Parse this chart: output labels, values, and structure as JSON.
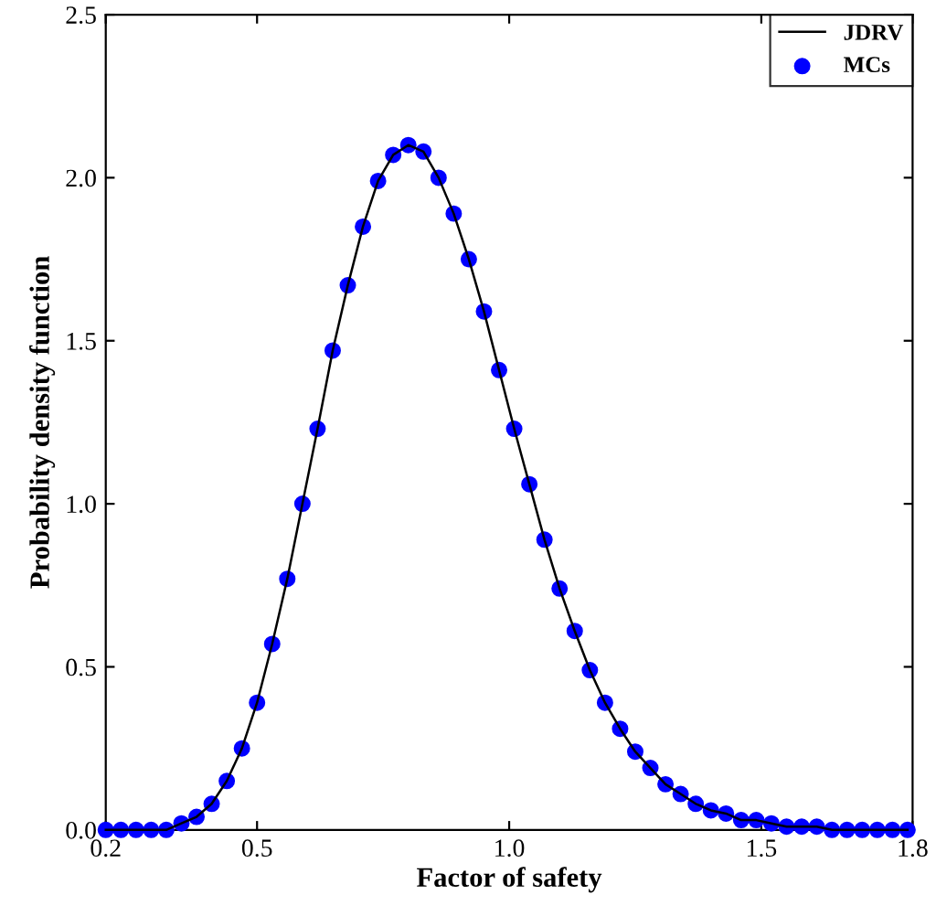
{
  "chart_data": {
    "type": "line",
    "xlabel": "Factor of safety",
    "ylabel": "Probability density function",
    "xlim": [
      0.2,
      1.8
    ],
    "ylim": [
      0,
      2.5
    ],
    "xticks": [
      {
        "value": 0.2,
        "label": "0.2"
      },
      {
        "value": 0.5,
        "label": "0.5"
      },
      {
        "value": 1.0,
        "label": "1.0"
      },
      {
        "value": 1.5,
        "label": "1.5"
      },
      {
        "value": 1.8,
        "label": "1.8"
      }
    ],
    "yticks": [
      {
        "value": 0,
        "label": "0.0"
      },
      {
        "value": 0.5,
        "label": "0.5"
      },
      {
        "value": 1.0,
        "label": "1.0"
      },
      {
        "value": 1.5,
        "label": "1.5"
      },
      {
        "value": 2.0,
        "label": "2.0"
      },
      {
        "value": 2.5,
        "label": "2.5"
      }
    ],
    "x": [
      0.2,
      0.23,
      0.26,
      0.29,
      0.32,
      0.35,
      0.38,
      0.41,
      0.44,
      0.47,
      0.5,
      0.53,
      0.56,
      0.59,
      0.62,
      0.65,
      0.68,
      0.71,
      0.74,
      0.77,
      0.8,
      0.83,
      0.86,
      0.89,
      0.92,
      0.95,
      0.98,
      1.01,
      1.04,
      1.07,
      1.1,
      1.13,
      1.16,
      1.19,
      1.22,
      1.25,
      1.28,
      1.31,
      1.34,
      1.37,
      1.4,
      1.43,
      1.46,
      1.49,
      1.52,
      1.55,
      1.58,
      1.61,
      1.64,
      1.67,
      1.7,
      1.73,
      1.76,
      1.79
    ],
    "legend": "top right",
    "grid": false,
    "series": [
      {
        "name": "JDRV",
        "color": "#000000",
        "marker": "none",
        "line_style": "solid",
        "values": [
          0,
          0,
          0,
          0,
          0,
          0.02,
          0.04,
          0.08,
          0.15,
          0.25,
          0.39,
          0.57,
          0.77,
          1.0,
          1.23,
          1.47,
          1.67,
          1.85,
          1.99,
          2.07,
          2.1,
          2.08,
          2.0,
          1.89,
          1.75,
          1.59,
          1.41,
          1.23,
          1.06,
          0.89,
          0.74,
          0.61,
          0.49,
          0.39,
          0.31,
          0.24,
          0.19,
          0.14,
          0.11,
          0.08,
          0.06,
          0.05,
          0.03,
          0.03,
          0.02,
          0.01,
          0.01,
          0.01,
          0,
          0,
          0,
          0,
          0,
          0
        ]
      },
      {
        "name": "MCs",
        "type": "scatter",
        "color": "#0000ff",
        "marker": "circle",
        "values": [
          0,
          0,
          0,
          0,
          0,
          0.02,
          0.04,
          0.08,
          0.15,
          0.25,
          0.39,
          0.57,
          0.77,
          1.0,
          1.23,
          1.47,
          1.67,
          1.85,
          1.99,
          2.07,
          2.1,
          2.08,
          2.0,
          1.89,
          1.75,
          1.59,
          1.41,
          1.23,
          1.06,
          0.89,
          0.74,
          0.61,
          0.49,
          0.39,
          0.31,
          0.24,
          0.19,
          0.14,
          0.11,
          0.08,
          0.06,
          0.05,
          0.03,
          0.03,
          0.02,
          0.01,
          0.01,
          0.01,
          0,
          0,
          0,
          0,
          0,
          0
        ]
      }
    ]
  }
}
